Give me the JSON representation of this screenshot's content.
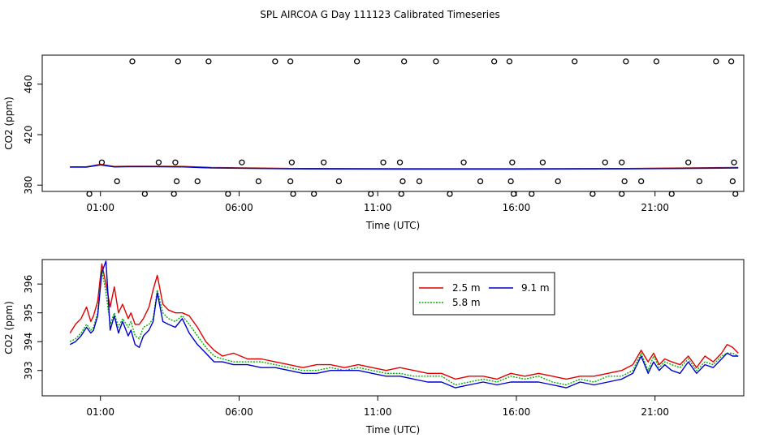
{
  "title": "SPL AIRCOA G  Day 111123  Calibrated Timeseries",
  "chart_data": [
    {
      "type": "scatter",
      "id": "top",
      "xlabel": "Time (UTC)",
      "ylabel": "CO2 (ppm)",
      "xlim": [
        -1.1,
        24.2
      ],
      "ylim": [
        375,
        483
      ],
      "xticks": [
        {
          "v": 1,
          "label": "01:00"
        },
        {
          "v": 6,
          "label": "06:00"
        },
        {
          "v": 11,
          "label": "11:00"
        },
        {
          "v": 16,
          "label": "16:00"
        },
        {
          "v": 21,
          "label": "21:00"
        }
      ],
      "yticks": [
        {
          "v": 380,
          "label": "380"
        },
        {
          "v": 420,
          "label": "420"
        },
        {
          "v": 460,
          "label": "460"
        }
      ],
      "circles": [
        [
          1.05,
          398
        ],
        [
          2.15,
          478
        ],
        [
          3.1,
          398
        ],
        [
          3.7,
          398
        ],
        [
          3.8,
          478
        ],
        [
          4.9,
          478
        ],
        [
          6.1,
          398
        ],
        [
          7.3,
          478
        ],
        [
          7.85,
          478
        ],
        [
          7.9,
          398
        ],
        [
          9.05,
          398
        ],
        [
          10.25,
          478
        ],
        [
          11.2,
          398
        ],
        [
          11.8,
          398
        ],
        [
          11.95,
          478
        ],
        [
          13.1,
          478
        ],
        [
          14.1,
          398
        ],
        [
          15.2,
          478
        ],
        [
          15.75,
          478
        ],
        [
          15.85,
          398
        ],
        [
          16.95,
          398
        ],
        [
          18.1,
          478
        ],
        [
          19.2,
          398
        ],
        [
          19.8,
          398
        ],
        [
          19.95,
          478
        ],
        [
          21.05,
          478
        ],
        [
          22.2,
          398
        ],
        [
          23.2,
          478
        ],
        [
          23.75,
          478
        ],
        [
          23.85,
          398
        ],
        [
          1.6,
          383
        ],
        [
          3.75,
          383
        ],
        [
          4.5,
          383
        ],
        [
          6.7,
          383
        ],
        [
          7.85,
          383
        ],
        [
          9.6,
          383
        ],
        [
          11.9,
          383
        ],
        [
          12.5,
          383
        ],
        [
          14.7,
          383
        ],
        [
          15.8,
          383
        ],
        [
          17.5,
          383
        ],
        [
          19.9,
          383
        ],
        [
          20.5,
          383
        ],
        [
          22.6,
          383
        ],
        [
          23.8,
          383
        ],
        [
          0.6,
          373
        ],
        [
          2.6,
          373
        ],
        [
          3.65,
          373
        ],
        [
          5.6,
          373
        ],
        [
          7.95,
          373
        ],
        [
          8.7,
          373
        ],
        [
          10.75,
          373
        ],
        [
          11.85,
          373
        ],
        [
          13.6,
          373
        ],
        [
          15.9,
          373
        ],
        [
          16.55,
          373
        ],
        [
          18.75,
          373
        ],
        [
          19.8,
          373
        ],
        [
          21.6,
          373
        ],
        [
          23.9,
          373
        ]
      ],
      "series": [
        {
          "name": "2.5 m",
          "color": "#e00000",
          "x": [
            -0.1,
            0.5,
            1.0,
            1.5,
            2.0,
            3.0,
            4.0,
            5.0,
            8.0,
            12.0,
            16.0,
            20.0,
            24.0
          ],
          "values": [
            394.5,
            394.5,
            396.5,
            394.8,
            395.0,
            395.0,
            394.8,
            394.0,
            393.2,
            393.0,
            393.0,
            393.2,
            394.0
          ]
        },
        {
          "name": "5.8 m",
          "color": "#00b000",
          "x": [
            -0.1,
            0.5,
            1.0,
            1.5,
            2.0,
            3.0,
            4.0,
            5.0,
            8.0,
            12.0,
            16.0,
            20.0,
            24.0
          ],
          "values": [
            394.5,
            394.5,
            396.0,
            394.6,
            394.8,
            394.8,
            394.6,
            393.8,
            393.0,
            392.8,
            392.8,
            393.0,
            393.8
          ]
        },
        {
          "name": "9.1 m",
          "color": "#0000d0",
          "x": [
            -0.1,
            0.5,
            1.0,
            1.5,
            2.0,
            3.0,
            4.0,
            5.0,
            8.0,
            12.0,
            16.0,
            20.0,
            24.0
          ],
          "values": [
            394.3,
            394.3,
            396.0,
            394.4,
            394.6,
            394.6,
            394.4,
            393.6,
            392.9,
            392.7,
            392.6,
            392.9,
            393.6
          ]
        }
      ]
    },
    {
      "type": "line",
      "id": "bottom",
      "xlabel": "Time (UTC)",
      "ylabel": "CO2 (ppm)",
      "xlim": [
        -1.1,
        24.2
      ],
      "ylim": [
        392.12,
        396.85
      ],
      "xticks": [
        {
          "v": 1,
          "label": "01:00"
        },
        {
          "v": 6,
          "label": "06:00"
        },
        {
          "v": 11,
          "label": "11:00"
        },
        {
          "v": 16,
          "label": "16:00"
        },
        {
          "v": 21,
          "label": "21:00"
        }
      ],
      "yticks": [
        {
          "v": 393,
          "label": "393"
        },
        {
          "v": 394,
          "label": "394"
        },
        {
          "v": 395,
          "label": "395"
        },
        {
          "v": 396,
          "label": "396"
        }
      ],
      "legend_position": "top-center",
      "series": [
        {
          "name": "2.5 m",
          "color": "#e00000",
          "x": [
            -0.1,
            0.1,
            0.3,
            0.5,
            0.65,
            0.75,
            0.9,
            1.05,
            1.2,
            1.35,
            1.5,
            1.65,
            1.8,
            2.0,
            2.1,
            2.25,
            2.4,
            2.55,
            2.75,
            2.9,
            3.05,
            3.25,
            3.45,
            3.7,
            3.95,
            4.2,
            4.5,
            4.8,
            5.1,
            5.4,
            5.8,
            6.3,
            6.8,
            7.3,
            7.8,
            8.3,
            8.8,
            9.3,
            9.8,
            10.3,
            10.8,
            11.3,
            11.8,
            12.3,
            12.8,
            13.3,
            13.8,
            14.3,
            14.8,
            15.3,
            15.8,
            16.3,
            16.8,
            17.3,
            17.8,
            18.3,
            18.8,
            19.3,
            19.8,
            20.2,
            20.5,
            20.75,
            20.95,
            21.15,
            21.35,
            21.6,
            21.9,
            22.2,
            22.5,
            22.8,
            23.1,
            23.4,
            23.6,
            23.8,
            24.0
          ],
          "values": [
            394.3,
            394.6,
            394.8,
            395.2,
            394.7,
            394.9,
            395.4,
            396.7,
            396.0,
            395.2,
            395.9,
            395.0,
            395.3,
            394.8,
            395.0,
            394.6,
            394.6,
            394.8,
            395.2,
            395.8,
            396.3,
            395.3,
            395.1,
            395.0,
            395.0,
            394.9,
            394.5,
            394.0,
            393.7,
            393.5,
            393.6,
            393.4,
            393.4,
            393.3,
            393.2,
            393.1,
            393.2,
            393.2,
            393.1,
            393.2,
            393.1,
            393.0,
            393.1,
            393.0,
            392.9,
            392.9,
            392.7,
            392.8,
            392.8,
            392.7,
            392.9,
            392.8,
            392.9,
            392.8,
            392.7,
            392.8,
            392.8,
            392.9,
            393.0,
            393.2,
            393.7,
            393.3,
            393.6,
            393.2,
            393.4,
            393.3,
            393.2,
            393.5,
            393.1,
            393.5,
            393.3,
            393.6,
            393.9,
            393.8,
            393.6
          ]
        },
        {
          "name": "5.8 m",
          "color": "#00b000",
          "x": [
            -0.1,
            0.1,
            0.3,
            0.5,
            0.65,
            0.75,
            0.9,
            1.05,
            1.2,
            1.35,
            1.5,
            1.65,
            1.8,
            2.0,
            2.1,
            2.25,
            2.4,
            2.55,
            2.75,
            2.9,
            3.05,
            3.25,
            3.45,
            3.7,
            3.95,
            4.2,
            4.5,
            4.8,
            5.1,
            5.4,
            5.8,
            6.3,
            6.8,
            7.3,
            7.8,
            8.3,
            8.8,
            9.3,
            9.8,
            10.3,
            10.8,
            11.3,
            11.8,
            12.3,
            12.8,
            13.3,
            13.8,
            14.3,
            14.8,
            15.3,
            15.8,
            16.3,
            16.8,
            17.3,
            17.8,
            18.3,
            18.8,
            19.3,
            19.8,
            20.2,
            20.5,
            20.75,
            20.95,
            21.15,
            21.35,
            21.6,
            21.9,
            22.2,
            22.5,
            22.8,
            23.1,
            23.4,
            23.6,
            23.8,
            24.0
          ],
          "values": [
            394.0,
            394.1,
            394.3,
            394.6,
            394.4,
            394.5,
            395.0,
            396.5,
            395.7,
            394.6,
            395.0,
            394.5,
            394.8,
            394.5,
            394.7,
            394.2,
            394.1,
            394.5,
            394.6,
            394.8,
            395.8,
            395.0,
            394.8,
            394.7,
            394.9,
            394.6,
            394.2,
            393.8,
            393.5,
            393.4,
            393.3,
            393.3,
            393.3,
            393.2,
            393.1,
            393.0,
            393.0,
            393.1,
            393.0,
            393.1,
            393.0,
            392.9,
            392.9,
            392.8,
            392.8,
            392.8,
            392.5,
            392.6,
            392.7,
            392.6,
            392.8,
            392.7,
            392.8,
            392.6,
            392.5,
            392.7,
            392.6,
            392.8,
            392.8,
            393.0,
            393.6,
            393.0,
            393.5,
            393.1,
            393.3,
            393.2,
            393.1,
            393.4,
            393.0,
            393.3,
            393.2,
            393.5,
            393.6,
            393.6,
            393.5
          ]
        },
        {
          "name": "9.1 m",
          "color": "#0000d0",
          "x": [
            -0.1,
            0.1,
            0.3,
            0.5,
            0.65,
            0.75,
            0.9,
            1.05,
            1.2,
            1.35,
            1.5,
            1.65,
            1.8,
            2.0,
            2.1,
            2.25,
            2.4,
            2.55,
            2.75,
            2.9,
            3.05,
            3.25,
            3.45,
            3.7,
            3.95,
            4.2,
            4.5,
            4.8,
            5.1,
            5.4,
            5.8,
            6.3,
            6.8,
            7.3,
            7.8,
            8.3,
            8.8,
            9.3,
            9.8,
            10.3,
            10.8,
            11.3,
            11.8,
            12.3,
            12.8,
            13.3,
            13.8,
            14.3,
            14.8,
            15.3,
            15.8,
            16.3,
            16.8,
            17.3,
            17.8,
            18.3,
            18.8,
            19.3,
            19.8,
            20.2,
            20.5,
            20.75,
            20.95,
            21.15,
            21.35,
            21.6,
            21.9,
            22.2,
            22.5,
            22.8,
            23.1,
            23.4,
            23.6,
            23.8,
            24.0
          ],
          "values": [
            393.9,
            394.0,
            394.2,
            394.5,
            394.3,
            394.4,
            394.9,
            396.4,
            396.8,
            394.4,
            394.9,
            394.3,
            394.7,
            394.2,
            394.4,
            393.9,
            393.8,
            394.2,
            394.4,
            394.7,
            395.7,
            394.7,
            394.6,
            394.5,
            394.8,
            394.3,
            393.9,
            393.6,
            393.3,
            393.3,
            393.2,
            393.2,
            393.1,
            393.1,
            393.0,
            392.9,
            392.9,
            393.0,
            393.0,
            393.0,
            392.9,
            392.8,
            392.8,
            392.7,
            392.6,
            392.6,
            392.4,
            392.5,
            392.6,
            392.5,
            392.6,
            392.6,
            392.6,
            392.5,
            392.4,
            392.6,
            392.5,
            392.6,
            392.7,
            392.9,
            393.5,
            392.9,
            393.3,
            393.0,
            393.2,
            393.0,
            392.9,
            393.3,
            392.9,
            393.2,
            393.1,
            393.4,
            393.6,
            393.5,
            393.5
          ]
        }
      ]
    }
  ]
}
